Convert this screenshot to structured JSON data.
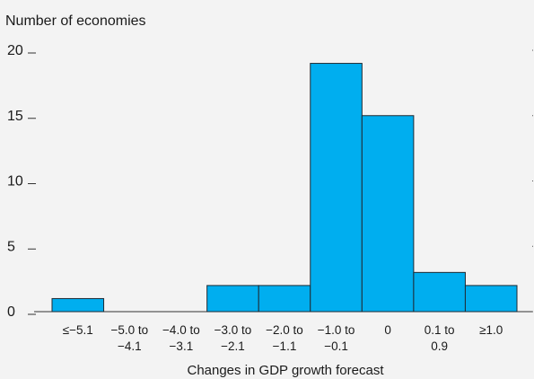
{
  "chart_data": {
    "type": "bar",
    "ylabel": "Number of economies",
    "xlabel": "Changes in GDP growth forecast",
    "categories": [
      [
        "≤−5.1"
      ],
      [
        "−5.0 to",
        "−4.1"
      ],
      [
        "−4.0 to",
        "−3.1"
      ],
      [
        "−3.0 to",
        "−2.1"
      ],
      [
        "−2.0 to",
        "−1.1"
      ],
      [
        "−1.0 to",
        "−0.1"
      ],
      [
        "0"
      ],
      [
        "0.1 to",
        "0.9"
      ],
      [
        "≥1.0"
      ]
    ],
    "values": [
      1,
      0,
      0,
      2,
      2,
      19,
      15,
      3,
      2
    ],
    "ylim": [
      0,
      20
    ],
    "yticks": [
      "0",
      "5",
      "10",
      "15",
      "20"
    ],
    "bar_color": "#00aeef",
    "grid": false
  }
}
